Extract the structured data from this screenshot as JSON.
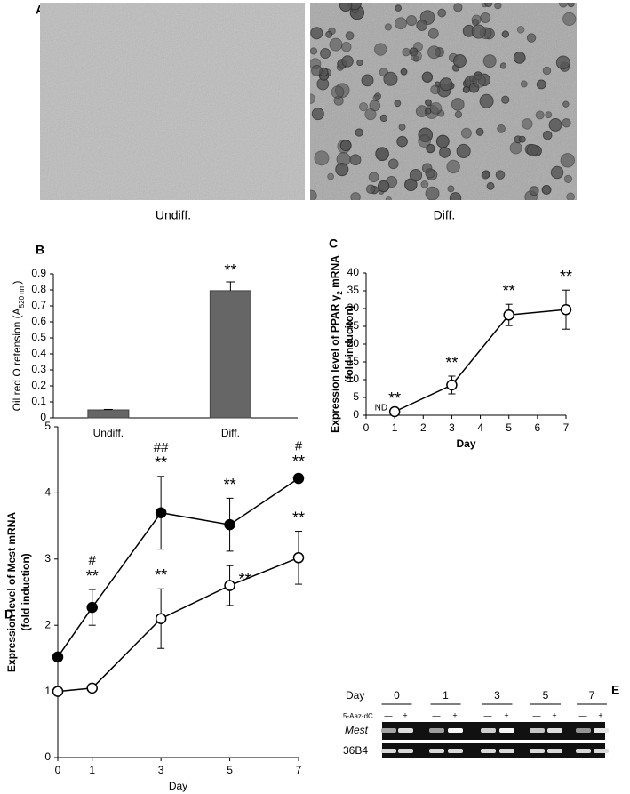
{
  "panel_a": {
    "label": "A",
    "left_caption": "Undiff.",
    "right_caption": "Diff."
  },
  "chart_data": [
    {
      "type": "bar",
      "panel": "B",
      "y_label": "Oil red O retension (A",
      "y_label_sub": "520 nm",
      "y_label_end": ")",
      "categories": [
        "Undiff.",
        "Diff."
      ],
      "values": [
        0.05,
        0.795
      ],
      "errors": [
        0.003,
        0.055
      ],
      "color": "#666666",
      "value_annotations": [
        null,
        "**"
      ],
      "ylim": [
        0,
        0.9
      ],
      "yticks": [
        0,
        0.1,
        0.2,
        0.3,
        0.4,
        0.5,
        0.6,
        0.7,
        0.8,
        0.9
      ]
    },
    {
      "type": "line",
      "panel": "C",
      "y_label": "Expression level of PPAR γ",
      "y_label_sub": "2",
      "y_label_end": " mRNA",
      "y_label_2": "(fold induciton)",
      "x_label": "Day",
      "note": "ND",
      "x": [
        1,
        3,
        5,
        7
      ],
      "series": [
        {
          "color": "#000000",
          "marker_fill": "#ffffff",
          "values": [
            1,
            8.5,
            28.2,
            29.7
          ],
          "errors": [
            0,
            2.5,
            3,
            5.5
          ],
          "point_labels": [
            "**",
            "**",
            "**",
            "**"
          ]
        }
      ],
      "xlim": [
        0,
        7
      ],
      "xticks": [
        0,
        1,
        2,
        3,
        4,
        5,
        6,
        7
      ],
      "ylim": [
        0,
        40
      ],
      "yticks": [
        0,
        5,
        10,
        15,
        20,
        25,
        30,
        35,
        40
      ]
    },
    {
      "type": "line",
      "panel": "D",
      "y_label": "Expression level of Mest mRNA",
      "y_label_2": "(fold induction)",
      "x_label": "Day",
      "x": [
        0,
        1,
        3,
        5,
        7
      ],
      "series": [
        {
          "color": "#000000",
          "marker_fill": "#000000",
          "values": [
            1.52,
            2.27,
            3.7,
            3.52,
            4.22
          ],
          "errors": [
            0,
            0.27,
            0.55,
            0.4,
            0.05
          ],
          "point_labels": [
            null,
            "**",
            "**",
            "**",
            "**"
          ],
          "point_labels_2": [
            null,
            "#",
            "##",
            null,
            "#"
          ]
        },
        {
          "color": "#000000",
          "marker_fill": "#ffffff",
          "values": [
            1.0,
            1.05,
            2.1,
            2.6,
            3.02
          ],
          "errors": [
            0,
            0.05,
            0.45,
            0.3,
            0.4
          ],
          "point_labels": [
            null,
            null,
            "**",
            "**",
            "**"
          ]
        }
      ],
      "xlim": [
        0,
        7
      ],
      "xticks": [
        0,
        1,
        3,
        5,
        7
      ],
      "ylim": [
        0,
        5
      ],
      "yticks": [
        0,
        1,
        2,
        3,
        4,
        5
      ]
    }
  ],
  "panel_e": {
    "label": "E",
    "day_label": "Day",
    "days": [
      "0",
      "1",
      "3",
      "5",
      "7"
    ],
    "treatment_label": "5-Aaz-dC",
    "lanes": [
      "—",
      "+",
      "—",
      "+",
      "—",
      "+",
      "—",
      "+",
      "—",
      "+"
    ],
    "gene_1": "Mest",
    "gene_2": "36B4"
  }
}
